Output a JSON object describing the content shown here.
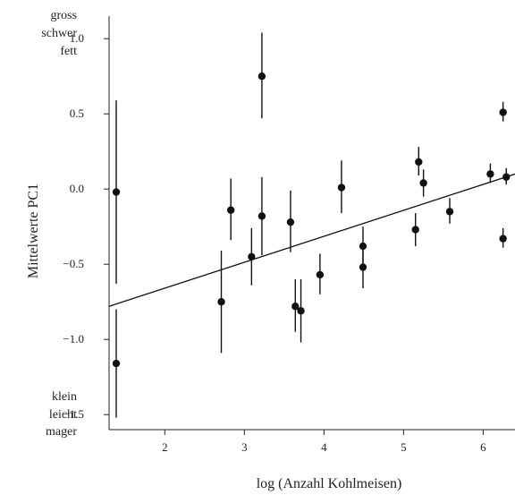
{
  "chart_data": {
    "type": "scatter",
    "title": "",
    "xlabel": "log (Anzahl Kohlmeisen)",
    "ylabel": "Mittelwerte PC1",
    "xlim": [
      1.3,
      6.4
    ],
    "ylim": [
      -1.6,
      1.15
    ],
    "xticks": [
      2,
      3,
      4,
      5,
      6
    ],
    "yticks": [
      -1.5,
      -1.0,
      -0.5,
      0.0,
      0.5,
      1.0
    ],
    "ytick_labels": [
      "−1.5",
      "−1.0",
      "−0.5",
      "0.0",
      "0.5",
      "1.0"
    ],
    "annotations": {
      "top": [
        "gross",
        "schwer",
        "fett"
      ],
      "bottom": [
        "klein",
        "leicht",
        "mager"
      ]
    },
    "regression_line": {
      "x": [
        1.3,
        6.4
      ],
      "y": [
        -0.78,
        0.1
      ]
    },
    "points": [
      {
        "x": 1.39,
        "y": -0.02,
        "lo": -0.63,
        "hi": 0.59
      },
      {
        "x": 1.39,
        "y": -1.16,
        "lo": -1.52,
        "hi": -0.8
      },
      {
        "x": 2.71,
        "y": -0.75,
        "lo": -1.09,
        "hi": -0.41
      },
      {
        "x": 2.83,
        "y": -0.14,
        "lo": -0.34,
        "hi": 0.07
      },
      {
        "x": 3.09,
        "y": -0.45,
        "lo": -0.64,
        "hi": -0.26
      },
      {
        "x": 3.22,
        "y": 0.75,
        "lo": 0.47,
        "hi": 1.04
      },
      {
        "x": 3.22,
        "y": -0.18,
        "lo": -0.44,
        "hi": 0.08
      },
      {
        "x": 3.58,
        "y": -0.22,
        "lo": -0.42,
        "hi": -0.01
      },
      {
        "x": 3.64,
        "y": -0.78,
        "lo": -0.95,
        "hi": -0.6
      },
      {
        "x": 3.71,
        "y": -0.81,
        "lo": -1.02,
        "hi": -0.6
      },
      {
        "x": 3.95,
        "y": -0.57,
        "lo": -0.7,
        "hi": -0.43
      },
      {
        "x": 4.22,
        "y": 0.01,
        "lo": -0.16,
        "hi": 0.19
      },
      {
        "x": 4.49,
        "y": -0.38,
        "lo": -0.51,
        "hi": -0.25
      },
      {
        "x": 4.49,
        "y": -0.52,
        "lo": -0.66,
        "hi": -0.38
      },
      {
        "x": 5.15,
        "y": -0.27,
        "lo": -0.38,
        "hi": -0.16
      },
      {
        "x": 5.19,
        "y": 0.18,
        "lo": 0.09,
        "hi": 0.28
      },
      {
        "x": 5.25,
        "y": 0.04,
        "lo": -0.05,
        "hi": 0.13
      },
      {
        "x": 5.58,
        "y": -0.15,
        "lo": -0.23,
        "hi": -0.06
      },
      {
        "x": 6.09,
        "y": 0.1,
        "lo": 0.04,
        "hi": 0.17
      },
      {
        "x": 6.25,
        "y": 0.51,
        "lo": 0.45,
        "hi": 0.58
      },
      {
        "x": 6.25,
        "y": -0.33,
        "lo": -0.39,
        "hi": -0.26
      },
      {
        "x": 6.29,
        "y": 0.08,
        "lo": 0.03,
        "hi": 0.14
      }
    ],
    "grid": false,
    "legend": "none"
  }
}
